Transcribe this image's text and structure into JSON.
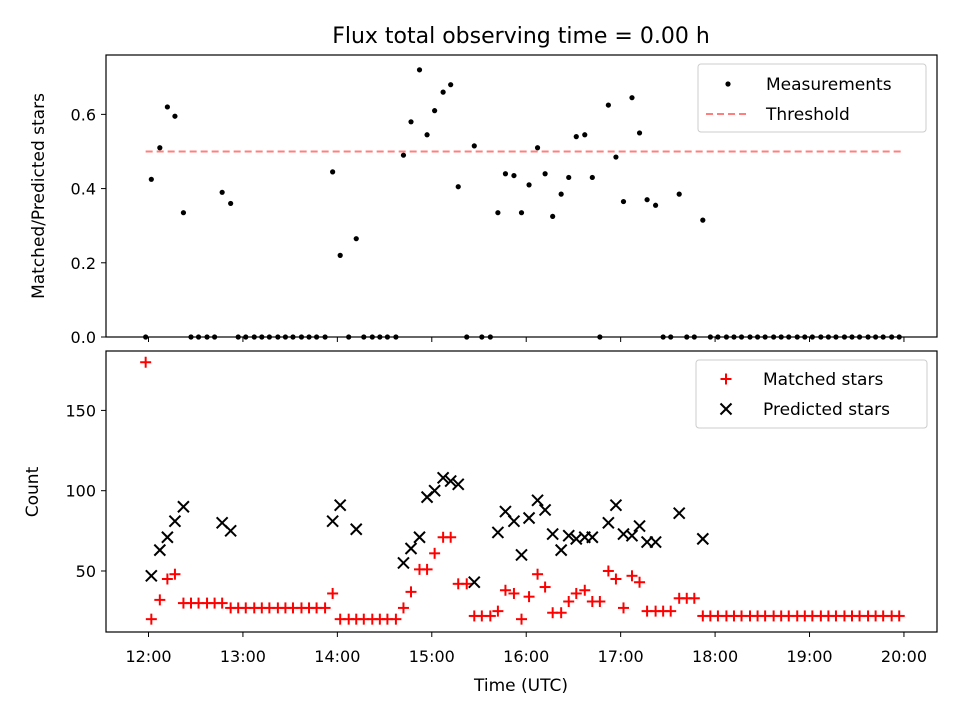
{
  "figure": {
    "title": "Flux total observing time = 0.00 h",
    "xlabel": "Time (UTC)",
    "x_ticks": [
      "12:00",
      "13:00",
      "14:00",
      "15:00",
      "16:00",
      "17:00",
      "18:00",
      "19:00",
      "20:00"
    ]
  },
  "colors": {
    "measurements": "#000000",
    "threshold": "#ff7f7f",
    "matched": "#ff0000",
    "predicted": "#000000"
  },
  "chart_data": [
    {
      "type": "scatter",
      "ylabel": "Matched/Predicted stars",
      "x_unit": "hours (UTC), 12.0 = 12:00",
      "xlim": [
        11.55,
        20.35
      ],
      "ylim": [
        0,
        0.76
      ],
      "y_ticks": [
        "0.0",
        "0.2",
        "0.4",
        "0.6"
      ],
      "legend_position": "top-right",
      "grid": false,
      "threshold": {
        "name": "Threshold",
        "value": 0.5,
        "x_range": [
          11.97,
          19.97
        ]
      },
      "series": [
        {
          "name": "Measurements",
          "x": [
            11.97,
            12.03,
            12.12,
            12.2,
            12.28,
            12.37,
            12.45,
            12.53,
            12.62,
            12.7,
            12.78,
            12.87,
            12.95,
            13.03,
            13.12,
            13.2,
            13.28,
            13.37,
            13.45,
            13.53,
            13.62,
            13.7,
            13.78,
            13.87,
            13.95,
            14.03,
            14.12,
            14.2,
            14.28,
            14.37,
            14.45,
            14.53,
            14.62,
            14.7,
            14.78,
            14.87,
            14.95,
            15.03,
            15.12,
            15.2,
            15.28,
            15.37,
            15.45,
            15.53,
            15.62,
            15.7,
            15.78,
            15.87,
            15.95,
            16.03,
            16.12,
            16.2,
            16.28,
            16.37,
            16.45,
            16.53,
            16.62,
            16.7,
            16.78,
            16.87,
            16.95,
            17.03,
            17.12,
            17.2,
            17.28,
            17.37,
            17.45,
            17.53,
            17.62,
            17.7,
            17.78,
            17.87,
            17.95,
            18.03,
            18.12,
            18.2,
            18.28,
            18.37,
            18.45,
            18.53,
            18.62,
            18.7,
            18.78,
            18.87,
            18.95,
            19.03,
            19.12,
            19.2,
            19.28,
            19.37,
            19.45,
            19.53,
            19.62,
            19.7,
            19.78,
            19.87,
            19.95
          ],
          "y": [
            0.0,
            0.425,
            0.51,
            0.62,
            0.595,
            0.335,
            0.0,
            0.0,
            0.0,
            0.0,
            0.39,
            0.36,
            0.0,
            0.0,
            0.0,
            0.0,
            0.0,
            0.0,
            0.0,
            0.0,
            0.0,
            0.0,
            0.0,
            0.0,
            0.445,
            0.22,
            0.0,
            0.265,
            0.0,
            0.0,
            0.0,
            0.0,
            0.0,
            0.49,
            0.58,
            0.72,
            0.545,
            0.61,
            0.66,
            0.68,
            0.405,
            0.0,
            0.515,
            0.0,
            0.0,
            0.335,
            0.44,
            0.435,
            0.335,
            0.41,
            0.51,
            0.44,
            0.325,
            0.385,
            0.43,
            0.54,
            0.545,
            0.43,
            0.0,
            0.625,
            0.485,
            0.365,
            0.645,
            0.55,
            0.37,
            0.355,
            0.0,
            0.0,
            0.385,
            0.0,
            0.0,
            0.315,
            0.0,
            0.0,
            0.0,
            0.0,
            0.0,
            0.0,
            0.0,
            0.0,
            0.0,
            0.0,
            0.0,
            0.0,
            0.0,
            0.0,
            0.0,
            0.0,
            0.0,
            0.0,
            0.0,
            0.0,
            0.0,
            0.0,
            0.0,
            0.0,
            0.0
          ]
        }
      ]
    },
    {
      "type": "scatter",
      "ylabel": "Count",
      "xlabel": "Time (UTC)",
      "x_unit": "hours (UTC), 12.0 = 12:00",
      "xlim": [
        11.55,
        20.35
      ],
      "ylim": [
        12,
        187
      ],
      "y_ticks": [
        "50",
        "100",
        "150"
      ],
      "legend_position": "top-right",
      "grid": false,
      "series": [
        {
          "name": "Matched stars",
          "marker": "plus",
          "x": [
            11.97,
            12.03,
            12.12,
            12.2,
            12.28,
            12.37,
            12.45,
            12.53,
            12.62,
            12.7,
            12.78,
            12.87,
            12.95,
            13.03,
            13.12,
            13.2,
            13.28,
            13.37,
            13.45,
            13.53,
            13.62,
            13.7,
            13.78,
            13.87,
            13.95,
            14.03,
            14.12,
            14.2,
            14.28,
            14.37,
            14.45,
            14.53,
            14.62,
            14.7,
            14.78,
            14.87,
            14.95,
            15.03,
            15.12,
            15.2,
            15.28,
            15.37,
            15.45,
            15.53,
            15.62,
            15.7,
            15.78,
            15.87,
            15.95,
            16.03,
            16.12,
            16.2,
            16.28,
            16.37,
            16.45,
            16.53,
            16.62,
            16.7,
            16.78,
            16.87,
            16.95,
            17.03,
            17.12,
            17.2,
            17.28,
            17.37,
            17.45,
            17.53,
            17.62,
            17.7,
            17.78,
            17.87,
            17.95,
            18.03,
            18.12,
            18.2,
            18.28,
            18.37,
            18.45,
            18.53,
            18.62,
            18.7,
            18.78,
            18.87,
            18.95,
            19.03,
            19.12,
            19.2,
            19.28,
            19.37,
            19.45,
            19.53,
            19.62,
            19.7,
            19.78,
            19.87,
            19.95
          ],
          "y": [
            180,
            20,
            32,
            45,
            48,
            30,
            30,
            30,
            30,
            30,
            30,
            27,
            27,
            27,
            27,
            27,
            27,
            27,
            27,
            27,
            27,
            27,
            27,
            27,
            36,
            20,
            20,
            20,
            20,
            20,
            20,
            20,
            20,
            27,
            37,
            51,
            51,
            61,
            71,
            71,
            42,
            42,
            22,
            22,
            22,
            25,
            38,
            36,
            20,
            34,
            48,
            40,
            24,
            24,
            31,
            36,
            38,
            31,
            31,
            50,
            45,
            27,
            47,
            43,
            25,
            25,
            25,
            25,
            33,
            33,
            33,
            22,
            22,
            22,
            22,
            22,
            22,
            22,
            22,
            22,
            22,
            22,
            22,
            22,
            22,
            22,
            22,
            22,
            22,
            22,
            22,
            22,
            22,
            22,
            22,
            22,
            22
          ]
        },
        {
          "name": "Predicted stars",
          "marker": "x",
          "x": [
            12.03,
            12.12,
            12.2,
            12.28,
            12.37,
            12.78,
            12.87,
            13.95,
            14.03,
            14.2,
            14.7,
            14.78,
            14.87,
            14.95,
            15.03,
            15.12,
            15.2,
            15.28,
            15.45,
            15.7,
            15.78,
            15.87,
            15.95,
            16.03,
            16.12,
            16.2,
            16.28,
            16.37,
            16.45,
            16.53,
            16.62,
            16.7,
            16.87,
            16.95,
            17.03,
            17.12,
            17.2,
            17.28,
            17.37,
            17.62,
            17.87
          ],
          "y": [
            47,
            63,
            71,
            81,
            90,
            80,
            75,
            81,
            91,
            76,
            55,
            64,
            71,
            96,
            100,
            108,
            106,
            104,
            43,
            74,
            87,
            81,
            60,
            83,
            94,
            88,
            73,
            63,
            72,
            70,
            71,
            71,
            80,
            91,
            73,
            72,
            78,
            68,
            68,
            86,
            70
          ]
        }
      ]
    }
  ]
}
